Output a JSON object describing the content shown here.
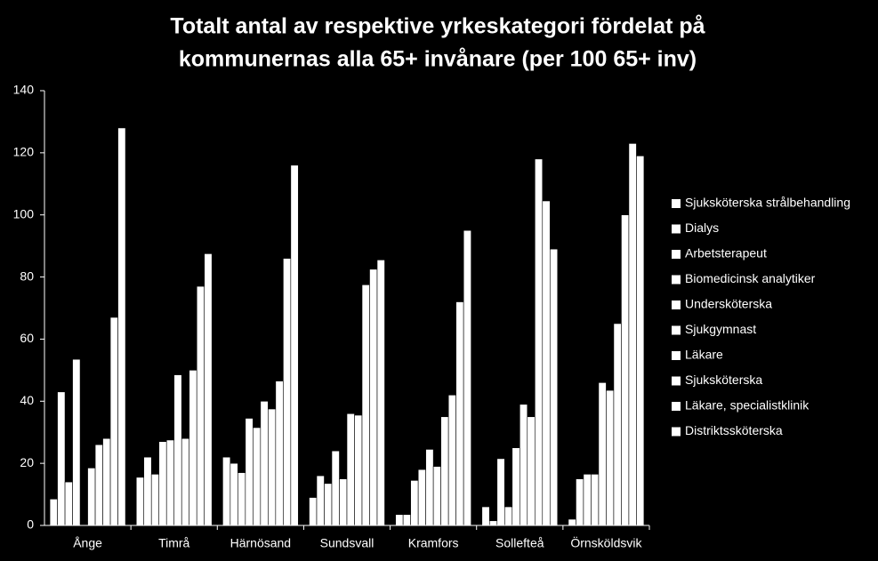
{
  "chart_data": {
    "type": "bar",
    "title": [
      "Totalt antal av respektive yrkeskategori fördelat på",
      "kommunernas alla 65+ invånare (per 100  65+ inv)"
    ],
    "categories": [
      "Ånge",
      "Timrå",
      "Härnösand",
      "Sundsvall",
      "Kramfors",
      "Sollefteå",
      "Örnsköldsvik"
    ],
    "series": [
      {
        "name": "Sjuksköterska strålbehandling",
        "color": "#ffffff",
        "values": [
          8.5,
          15.5,
          22,
          9,
          3.5,
          6,
          2
        ]
      },
      {
        "name": "Dialys",
        "color": "#ffffff",
        "values": [
          43,
          22,
          20,
          16,
          3.5,
          1.5,
          15
        ]
      },
      {
        "name": "Arbetsterapeut",
        "color": "#ffffff",
        "values": [
          14,
          16.5,
          17,
          13.5,
          14.5,
          21.5,
          16.5
        ]
      },
      {
        "name": "Biomedicinsk analytiker",
        "color": "#ffffff",
        "values": [
          53.5,
          27,
          34.5,
          24,
          18,
          6,
          16.5
        ]
      },
      {
        "name": "Undersköterska",
        "color": "#ffffff",
        "values": [
          0,
          27.5,
          31.5,
          15,
          24.5,
          25,
          46
        ]
      },
      {
        "name": "Sjukgymnast",
        "color": "#ffffff",
        "values": [
          18.5,
          48.5,
          40,
          36,
          19,
          39,
          43.5
        ]
      },
      {
        "name": "Läkare",
        "color": "#ffffff",
        "values": [
          26,
          28,
          37.5,
          35.5,
          35,
          35,
          65
        ]
      },
      {
        "name": "Sjuksköterska",
        "color": "#ffffff",
        "values": [
          28,
          50,
          46.5,
          77.5,
          42,
          118,
          100
        ]
      },
      {
        "name": "Läkare, specialistklinik",
        "color": "#ffffff",
        "values": [
          67,
          77,
          86,
          82.5,
          72,
          104.5,
          123
        ]
      },
      {
        "name": "Distriktssköterska",
        "color": "#ffffff",
        "values": [
          128,
          87.5,
          116,
          85.5,
          95,
          89,
          119
        ]
      }
    ],
    "ylim": [
      0,
      140
    ],
    "yticks": [
      0,
      20,
      40,
      60,
      80,
      100,
      120,
      140
    ],
    "grid": false,
    "legend": "right"
  }
}
